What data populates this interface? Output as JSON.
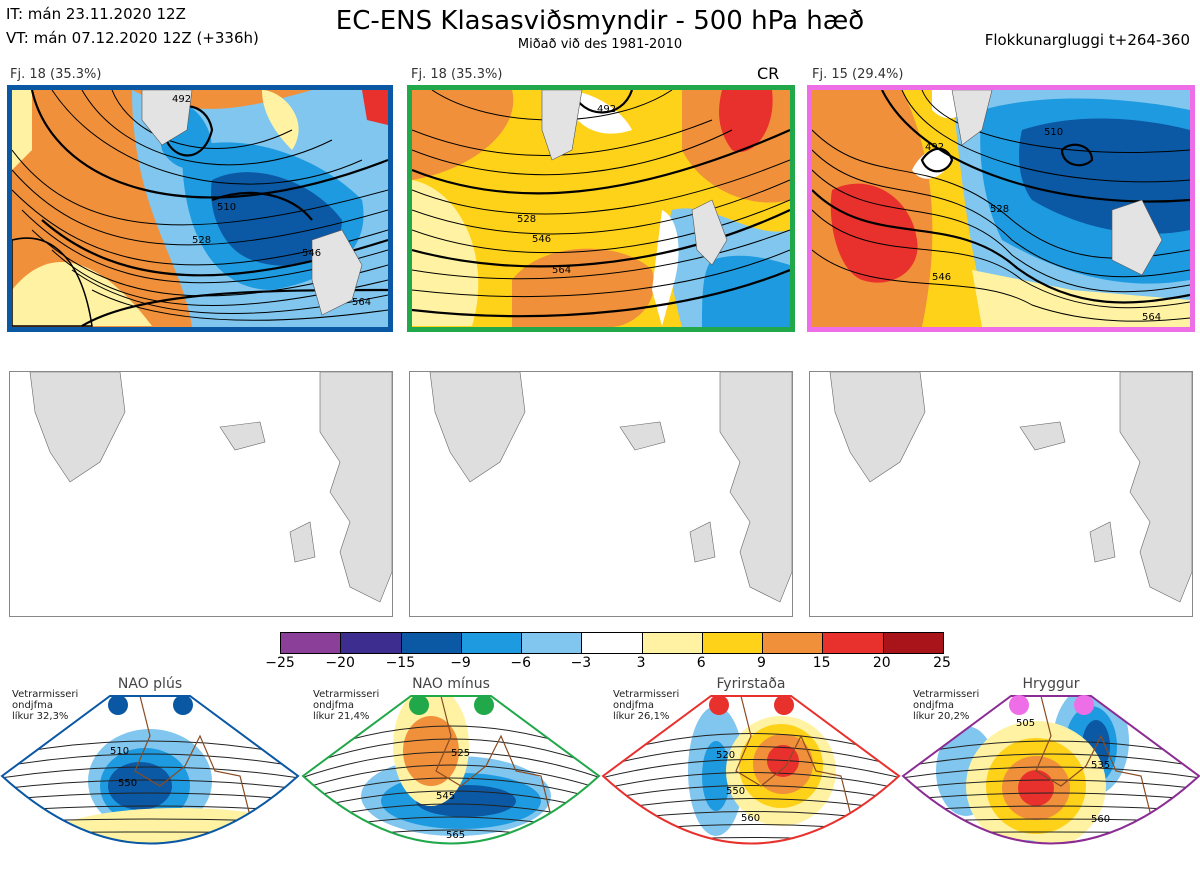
{
  "header": {
    "it_line": "IT: mán 23.11.2020 12Z",
    "vt_line": "VT: mán 07.12.2020 12Z  (+336h)",
    "title": "EC-ENS Klasasviðsmyndir - 500 hPa hæð",
    "subtitle": "Miðað við des 1981-2010",
    "window": "Flokkunargluggi t+264-360"
  },
  "panels": [
    {
      "label": "Fj. 18 (35.3%)",
      "frame_color": "#0a57a3",
      "extra": "",
      "contours": [
        "510",
        "528",
        "546",
        "564",
        "492"
      ]
    },
    {
      "label": "Fj. 18 (35.3%)",
      "frame_color": "#21a84a",
      "extra": "CR",
      "contours": [
        "528",
        "546",
        "564",
        "492"
      ]
    },
    {
      "label": "Fj. 15 (29.4%)",
      "frame_color": "#ee6ee8",
      "extra": "",
      "contours": [
        "510",
        "528",
        "546",
        "564",
        "492"
      ]
    }
  ],
  "colorbar": {
    "ticks": [
      "−25",
      "−20",
      "−15",
      "−9",
      "−6",
      "−3",
      "3",
      "6",
      "9",
      "15",
      "20",
      "25"
    ],
    "colors": [
      "#8c3f98",
      "#3c2d8f",
      "#0b59a5",
      "#1e9be0",
      "#80c6ee",
      "#ffffff",
      "#fff3a3",
      "#ffd21a",
      "#f0903a",
      "#e8312d",
      "#a8141a"
    ]
  },
  "regimes": [
    {
      "name": "NAO plús",
      "season": "Vetrarmisseri",
      "months": "ondjfma",
      "prob": "líkur 32,3%",
      "dot_color": "#0a57a3",
      "frame_color": "#0a57a3",
      "labels": [
        "510",
        "550"
      ]
    },
    {
      "name": "NAO mínus",
      "season": "Vetrarmisseri",
      "months": "ondjfma",
      "prob": "líkur 21,4%",
      "dot_color": "#21a84a",
      "frame_color": "#21a84a",
      "labels": [
        "525",
        "545",
        "565"
      ]
    },
    {
      "name": "Fyrirstaða",
      "season": "Vetrarmisseri",
      "months": "ondjfma",
      "prob": "líkur 26,1%",
      "dot_color": "#e8312d",
      "frame_color": "#e8312d",
      "labels": [
        "520",
        "550",
        "560"
      ]
    },
    {
      "name": "Hryggur",
      "season": "Vetrarmisseri",
      "months": "ondjfma",
      "prob": "líkur 20,2%",
      "dot_color": "#ee6ee8",
      "frame_color": "#8b2c94",
      "labels": [
        "505",
        "535",
        "560"
      ]
    }
  ],
  "chart_data": {
    "type": "heatmap",
    "title": "EC-ENS Klasasviðsmyndir - 500 hPa hæð",
    "colorbar_ticks": [
      -25,
      -20,
      -15,
      -9,
      -6,
      -3,
      3,
      6,
      9,
      15,
      20,
      25
    ],
    "clusters": [
      {
        "name": "Fj. 18",
        "members": 18,
        "percent": 35.3
      },
      {
        "name": "Fj. 18",
        "members": 18,
        "percent": 35.3
      },
      {
        "name": "Fj. 15",
        "members": 15,
        "percent": 29.4
      }
    ],
    "regimes": [
      {
        "name": "NAO plús",
        "probability": 32.3
      },
      {
        "name": "NAO mínus",
        "probability": 21.4
      },
      {
        "name": "Fyrirstaða",
        "probability": 26.1
      },
      {
        "name": "Hryggur",
        "probability": 20.2
      }
    ]
  }
}
